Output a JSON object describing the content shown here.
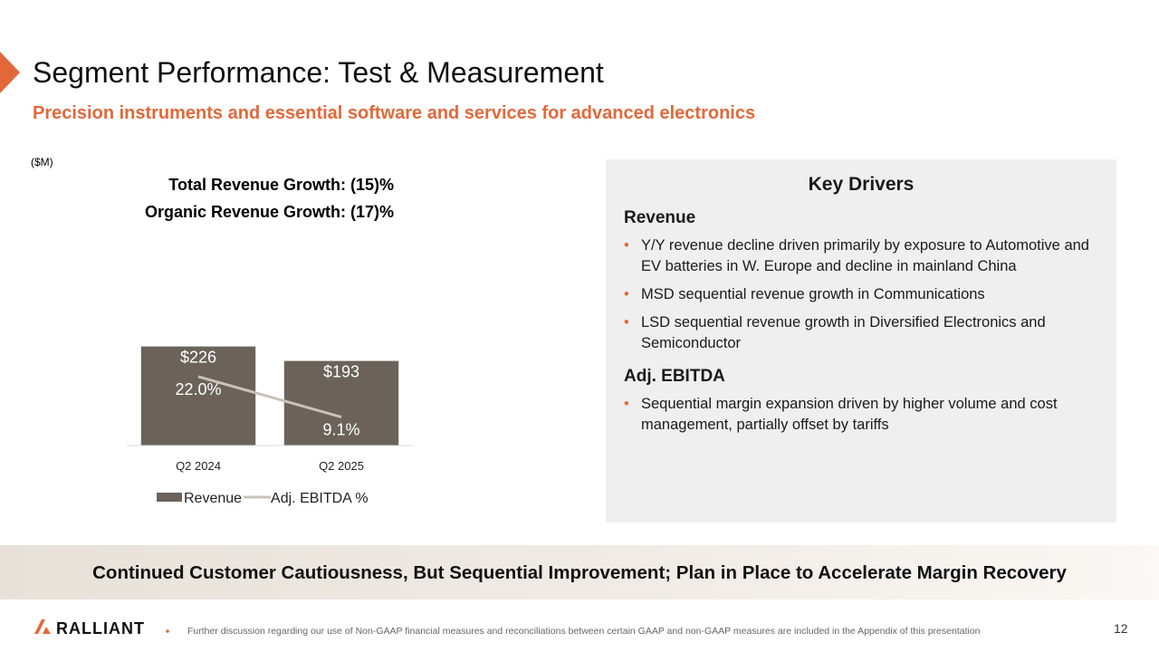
{
  "slide": {
    "title": "Segment Performance: Test & Measurement",
    "subtitle": "Precision instruments and essential software and services for advanced electronics",
    "banner": "Continued Customer Cautiousness, But Sequential Improvement; Plan in Place to Accelerate Margin Recovery",
    "logo": "RALLIANT",
    "footnote": "Further discussion regarding our use of Non-GAAP financial measures and reconciliations between certain GAAP and non-GAAP measures are included in the Appendix of this presentation",
    "page": "12"
  },
  "chart_data": {
    "type": "bar",
    "unit_label": "($M)",
    "annotations": [
      "Total Revenue Growth: (15)%",
      "Organic Revenue Growth: (17)%"
    ],
    "categories": [
      "Q2 2024",
      "Q2 2025"
    ],
    "series": [
      {
        "name": "Revenue",
        "type": "bar",
        "color": "#6b635a",
        "values": [
          226,
          193
        ],
        "value_labels": [
          "$226",
          "$193"
        ]
      },
      {
        "name": "Adj. EBITDA %",
        "type": "line",
        "axis": "y2",
        "color": "#c9c2b8",
        "values": [
          22.0,
          9.1
        ],
        "value_labels": [
          "22.0%",
          "9.1%"
        ]
      }
    ],
    "ylim": [
      0,
      500
    ],
    "y2lim": [
      0,
      70
    ]
  },
  "drivers": {
    "title": "Key Drivers",
    "sections": [
      {
        "heading": "Revenue",
        "bullets": [
          "Y/Y revenue decline driven primarily by exposure to Automotive and EV batteries in W. Europe and decline in mainland China",
          "MSD sequential revenue growth in Communications",
          "LSD sequential revenue growth in Diversified Electronics and Semiconductor"
        ]
      },
      {
        "heading": "Adj. EBITDA",
        "bullets": [
          "Sequential margin expansion driven by higher volume and cost management, partially offset by tariffs"
        ]
      }
    ]
  }
}
